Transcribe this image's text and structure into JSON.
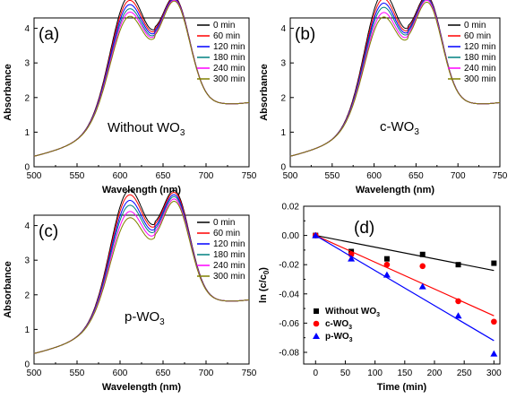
{
  "chart_data": [
    {
      "type": "line",
      "panel_label": "(a)",
      "annotation": {
        "text": "Without WO",
        "sub": "3"
      },
      "xlabel": "Wavelength (nm)",
      "ylabel": "Absorbance",
      "xlim": [
        500,
        750
      ],
      "ylim": [
        0,
        4.3
      ],
      "xticks": [
        "500",
        "550",
        "600",
        "650",
        "700",
        "750"
      ],
      "yticks": [
        "0",
        "1",
        "2",
        "3",
        "4"
      ],
      "legend_position": "top-right",
      "series": [
        {
          "name": "0 min",
          "color": "#000000",
          "peak1": 4.03,
          "peak2": 3.97
        },
        {
          "name": "60 min",
          "color": "#ff0000",
          "peak1": 3.9,
          "peak2": 3.95
        },
        {
          "name": "120 min",
          "color": "#0000ff",
          "peak1": 3.78,
          "peak2": 3.93
        },
        {
          "name": "180 min",
          "color": "#008080",
          "peak1": 3.66,
          "peak2": 3.91
        },
        {
          "name": "240 min",
          "color": "#ff00ff",
          "peak1": 3.56,
          "peak2": 3.9
        },
        {
          "name": "300 min",
          "color": "#808000",
          "peak1": 3.44,
          "peak2": 3.88
        }
      ]
    },
    {
      "type": "line",
      "panel_label": "(b)",
      "annotation": {
        "text": "c-WO",
        "sub": "3"
      },
      "xlabel": "Wavelength (nm)",
      "ylabel": "Absorbance",
      "xlim": [
        500,
        750
      ],
      "ylim": [
        0,
        4.3
      ],
      "xticks": [
        "500",
        "550",
        "600",
        "650",
        "700",
        "750"
      ],
      "yticks": [
        "0",
        "1",
        "2",
        "3",
        "4"
      ],
      "legend_position": "top-right",
      "series": [
        {
          "name": "0 min",
          "color": "#000000",
          "peak1": 4.1,
          "peak2": 4.0
        },
        {
          "name": "60 min",
          "color": "#ff0000",
          "peak1": 3.95,
          "peak2": 3.97
        },
        {
          "name": "120 min",
          "color": "#0000ff",
          "peak1": 3.82,
          "peak2": 3.95
        },
        {
          "name": "180 min",
          "color": "#008080",
          "peak1": 3.7,
          "peak2": 3.93
        },
        {
          "name": "240 min",
          "color": "#ff00ff",
          "peak1": 3.55,
          "peak2": 3.9
        },
        {
          "name": "300 min",
          "color": "#808000",
          "peak1": 3.42,
          "peak2": 3.85
        }
      ]
    },
    {
      "type": "line",
      "panel_label": "(c)",
      "annotation": {
        "text": "p-WO",
        "sub": "3"
      },
      "xlabel": "Wavelength (nm)",
      "ylabel": "Absorbance",
      "xlim": [
        500,
        750
      ],
      "ylim": [
        0,
        4.3
      ],
      "xticks": [
        "500",
        "550",
        "600",
        "650",
        "700",
        "750"
      ],
      "yticks": [
        "0",
        "1",
        "2",
        "3",
        "4"
      ],
      "legend_position": "top-right",
      "series": [
        {
          "name": "0 min",
          "color": "#000000",
          "peak1": 4.12,
          "peak2": 4.08
        },
        {
          "name": "60 min",
          "color": "#ff0000",
          "peak1": 3.98,
          "peak2": 4.03
        },
        {
          "name": "120 min",
          "color": "#0000ff",
          "peak1": 3.82,
          "peak2": 3.97
        },
        {
          "name": "180 min",
          "color": "#008080",
          "peak1": 3.68,
          "peak2": 3.92
        },
        {
          "name": "240 min",
          "color": "#ff00ff",
          "peak1": 3.5,
          "peak2": 3.86
        },
        {
          "name": "300 min",
          "color": "#808000",
          "peak1": 3.32,
          "peak2": 3.8
        }
      ]
    },
    {
      "type": "scatter",
      "panel_label": "(d)",
      "xlabel": "Time (min)",
      "ylabel": {
        "text": "ln (c/c",
        "sub": "0",
        "tail": ")"
      },
      "xlim": [
        -20,
        310
      ],
      "ylim": [
        -0.088,
        0.02
      ],
      "xticks": [
        0,
        50,
        100,
        150,
        200,
        250,
        300
      ],
      "yticks": [
        0.02,
        0.0,
        -0.02,
        -0.04,
        -0.06,
        -0.08
      ],
      "yticklabels": [
        "0.02",
        "0.00",
        "-0.02",
        "-0.04",
        "-0.06",
        "-0.08"
      ],
      "legend_position": "bottom-left",
      "series": [
        {
          "name": "Without WO",
          "name_sub": "3",
          "color": "#000000",
          "marker": "square",
          "x": [
            0,
            60,
            120,
            180,
            240,
            300
          ],
          "y": [
            0.0,
            -0.011,
            -0.016,
            -0.013,
            -0.02,
            -0.019
          ],
          "fit": [
            0.0,
            -0.024
          ]
        },
        {
          "name": "c-WO",
          "name_sub": "3",
          "color": "#ff0000",
          "marker": "circle",
          "x": [
            0,
            60,
            120,
            180,
            240,
            300
          ],
          "y": [
            0.0,
            -0.013,
            -0.02,
            -0.021,
            -0.045,
            -0.059
          ],
          "fit": [
            0.0,
            -0.055
          ]
        },
        {
          "name": "p-WO",
          "name_sub": "3",
          "color": "#0000ff",
          "marker": "triangle",
          "x": [
            0,
            60,
            120,
            180,
            240,
            300
          ],
          "y": [
            0.0,
            -0.016,
            -0.027,
            -0.035,
            -0.055,
            -0.081
          ],
          "fit": [
            0.0,
            -0.072
          ]
        }
      ]
    }
  ]
}
